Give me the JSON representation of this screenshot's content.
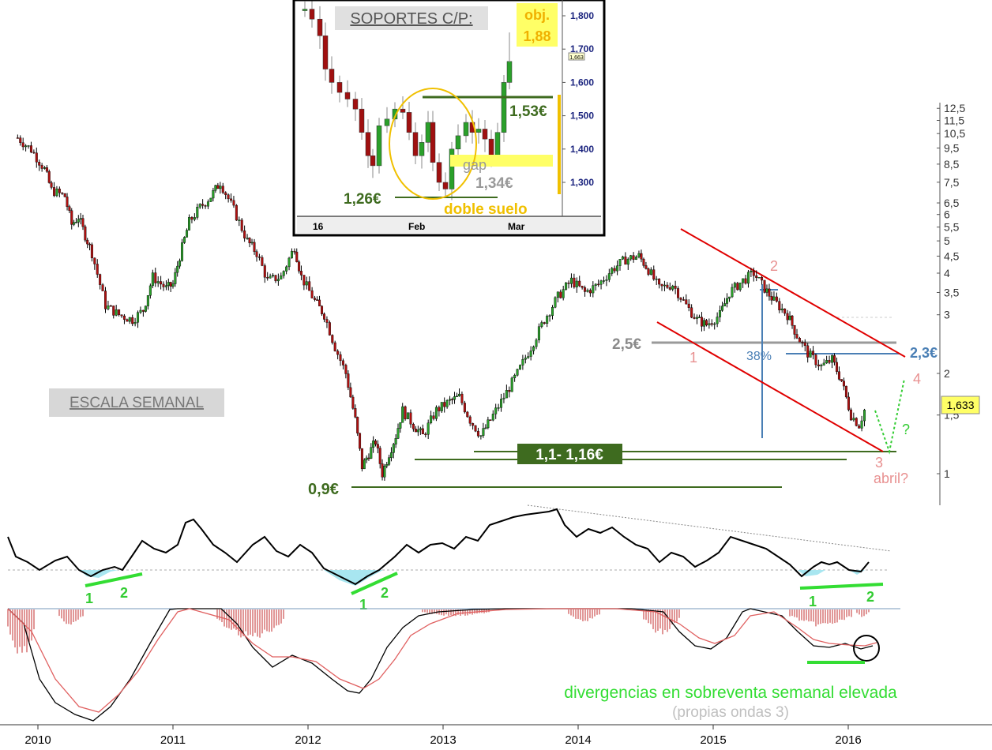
{
  "chart_data": {
    "type": "candlestick",
    "scale": "log",
    "y_ticks": [
      "12,5",
      "11,5",
      "10,5",
      "9,5",
      "8,5",
      "7,5",
      "6,5",
      "6",
      "5,5",
      "5",
      "4,5",
      "4",
      "3,5",
      "3",
      "2",
      "1,5",
      "1"
    ],
    "x_ticks": [
      "2010",
      "2011",
      "2012",
      "2013",
      "2014",
      "2015",
      "2016"
    ],
    "last_price": "1,633",
    "scale_label": "ESCALA SEMANAL",
    "annotations": {
      "support_low": "0,9€",
      "support_band": "1,1- 1,16€",
      "level_25": "2,5€",
      "level_23": "2,3€",
      "fib": "38%",
      "wave1": "1",
      "wave2": "2",
      "wave3": "3",
      "wave4": "4",
      "abril": "abril?",
      "question": "?",
      "div_osc_1a": "1",
      "div_osc_2a": "2",
      "div_osc_1b": "1",
      "div_osc_2b": "2",
      "div_osc_1c": "1",
      "div_osc_2c": "2",
      "divergence_text": "divergencias en sobreventa semanal elevada",
      "divergence_sub": "(propias ondas 3)"
    },
    "inset": {
      "title": "SOPORTES C/P:",
      "target_label": "obj.",
      "target_value": "1,88",
      "y_ticks": [
        "1,800",
        "1,700",
        "1,600",
        "1,500",
        "1,400",
        "1,300"
      ],
      "x_ticks": [
        "16",
        "Feb",
        "Mar"
      ],
      "last_tag": "1,663",
      "res_153": "1,53€",
      "gap_label": "gap",
      "sup_134": "1,34€",
      "sup_126": "1,26€",
      "pattern": "doble suelo"
    },
    "weekly_close": [
      [
        2009.85,
        10.2
      ],
      [
        2009.95,
        9.4
      ],
      [
        2010.05,
        8.2
      ],
      [
        2010.1,
        7.1
      ],
      [
        2010.2,
        6.8
      ],
      [
        2010.25,
        5.6
      ],
      [
        2010.3,
        5.9
      ],
      [
        2010.35,
        5.2
      ],
      [
        2010.4,
        4.6
      ],
      [
        2010.5,
        3.2
      ],
      [
        2010.6,
        3.0
      ],
      [
        2010.7,
        2.9
      ],
      [
        2010.78,
        3.1
      ],
      [
        2010.85,
        3.9
      ],
      [
        2010.95,
        3.6
      ],
      [
        2011.0,
        3.7
      ],
      [
        2011.05,
        4.5
      ],
      [
        2011.12,
        5.7
      ],
      [
        2011.2,
        6.3
      ],
      [
        2011.28,
        6.8
      ],
      [
        2011.35,
        7.5
      ],
      [
        2011.45,
        6.2
      ],
      [
        2011.55,
        5.0
      ],
      [
        2011.62,
        4.6
      ],
      [
        2011.7,
        3.8
      ],
      [
        2011.8,
        3.9
      ],
      [
        2011.9,
        4.8
      ],
      [
        2011.95,
        3.9
      ],
      [
        2012.05,
        3.3
      ],
      [
        2012.12,
        3.0
      ],
      [
        2012.2,
        2.4
      ],
      [
        2012.28,
        2.0
      ],
      [
        2012.35,
        1.45
      ],
      [
        2012.4,
        1.05
      ],
      [
        2012.45,
        1.15
      ],
      [
        2012.5,
        1.25
      ],
      [
        2012.55,
        1.0
      ],
      [
        2012.6,
        1.15
      ],
      [
        2012.65,
        1.3
      ],
      [
        2012.7,
        1.55
      ],
      [
        2012.78,
        1.4
      ],
      [
        2012.85,
        1.3
      ],
      [
        2012.95,
        1.55
      ],
      [
        2013.05,
        1.65
      ],
      [
        2013.12,
        1.7
      ],
      [
        2013.2,
        1.45
      ],
      [
        2013.28,
        1.3
      ],
      [
        2013.35,
        1.45
      ],
      [
        2013.45,
        1.7
      ],
      [
        2013.55,
        2.0
      ],
      [
        2013.65,
        2.4
      ],
      [
        2013.75,
        2.9
      ],
      [
        2013.85,
        3.4
      ],
      [
        2013.95,
        3.8
      ],
      [
        2014.05,
        3.5
      ],
      [
        2014.15,
        3.7
      ],
      [
        2014.25,
        4.1
      ],
      [
        2014.35,
        4.4
      ],
      [
        2014.45,
        4.5
      ],
      [
        2014.52,
        4.1
      ],
      [
        2014.6,
        3.6
      ],
      [
        2014.7,
        3.7
      ],
      [
        2014.8,
        3.2
      ],
      [
        2014.88,
        2.9
      ],
      [
        2014.95,
        2.8
      ],
      [
        2015.05,
        3.0
      ],
      [
        2015.12,
        3.5
      ],
      [
        2015.22,
        3.8
      ],
      [
        2015.3,
        4.0
      ],
      [
        2015.38,
        3.6
      ],
      [
        2015.45,
        3.3
      ],
      [
        2015.55,
        3.0
      ],
      [
        2015.62,
        2.6
      ],
      [
        2015.7,
        2.3
      ],
      [
        2015.8,
        2.1
      ],
      [
        2015.88,
        2.2
      ],
      [
        2015.95,
        1.9
      ],
      [
        2016.02,
        1.5
      ],
      [
        2016.08,
        1.4
      ],
      [
        2016.14,
        1.633
      ]
    ]
  }
}
